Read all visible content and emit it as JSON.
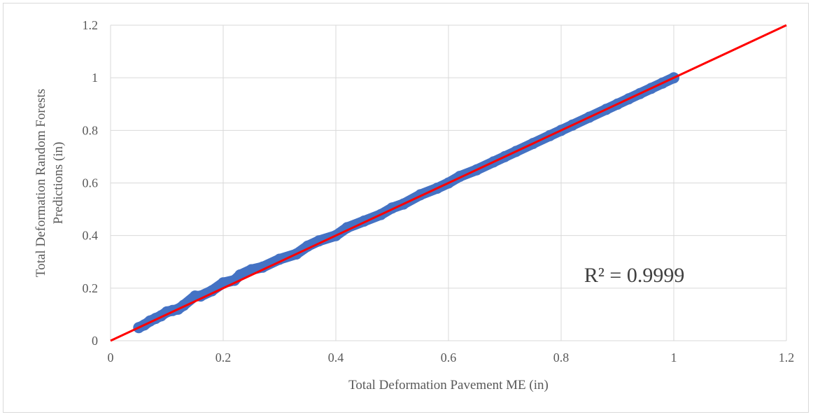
{
  "chart_data": {
    "type": "scatter",
    "title": "",
    "xlabel": "Total Deformation Pavement ME (in)",
    "ylabel_lines": [
      "Total Deformation Random Forests",
      "Predictions (in)"
    ],
    "xlim": [
      0,
      1.2
    ],
    "ylim": [
      0,
      1.2
    ],
    "xticks": [
      "0",
      "0.2",
      "0.4",
      "0.6",
      "0.8",
      "1",
      "1.2"
    ],
    "yticks": [
      "0",
      "0.2",
      "0.4",
      "0.6",
      "0.8",
      "1",
      "1.2"
    ],
    "grid": true,
    "legend": "none",
    "series": [
      {
        "marker_color": "#4472C4",
        "x_range": [
          0.05,
          1.0
        ],
        "points": [
          [
            0.05,
            0.05
          ],
          [
            0.06,
            0.06
          ],
          [
            0.07,
            0.075
          ],
          [
            0.08,
            0.085
          ],
          [
            0.09,
            0.095
          ],
          [
            0.1,
            0.11
          ],
          [
            0.11,
            0.115
          ],
          [
            0.12,
            0.12
          ],
          [
            0.13,
            0.135
          ],
          [
            0.15,
            0.17
          ],
          [
            0.16,
            0.17
          ],
          [
            0.18,
            0.19
          ],
          [
            0.2,
            0.22
          ],
          [
            0.22,
            0.23
          ],
          [
            0.23,
            0.25
          ],
          [
            0.25,
            0.27
          ],
          [
            0.27,
            0.28
          ],
          [
            0.3,
            0.31
          ],
          [
            0.33,
            0.33
          ],
          [
            0.35,
            0.36
          ],
          [
            0.37,
            0.38
          ],
          [
            0.4,
            0.4
          ],
          [
            0.42,
            0.43
          ],
          [
            0.45,
            0.455
          ],
          [
            0.48,
            0.48
          ],
          [
            0.5,
            0.505
          ],
          [
            0.52,
            0.52
          ],
          [
            0.55,
            0.555
          ],
          [
            0.58,
            0.58
          ],
          [
            0.6,
            0.6
          ],
          [
            0.62,
            0.625
          ],
          [
            0.65,
            0.65
          ],
          [
            0.68,
            0.68
          ],
          [
            0.7,
            0.7
          ],
          [
            0.72,
            0.72
          ],
          [
            0.75,
            0.75
          ],
          [
            0.78,
            0.78
          ],
          [
            0.8,
            0.8
          ],
          [
            0.82,
            0.82
          ],
          [
            0.85,
            0.85
          ],
          [
            0.88,
            0.88
          ],
          [
            0.9,
            0.9
          ],
          [
            0.92,
            0.92
          ],
          [
            0.94,
            0.94
          ],
          [
            0.96,
            0.96
          ],
          [
            0.98,
            0.98
          ],
          [
            1.0,
            1.0
          ]
        ]
      }
    ],
    "reference_line": {
      "color": "#FF0000",
      "from": [
        0,
        0
      ],
      "to": [
        1.2,
        1.2
      ]
    },
    "annotations": [
      {
        "text": "R² = 0.9999",
        "x": 0.93,
        "y": 0.25
      }
    ]
  }
}
